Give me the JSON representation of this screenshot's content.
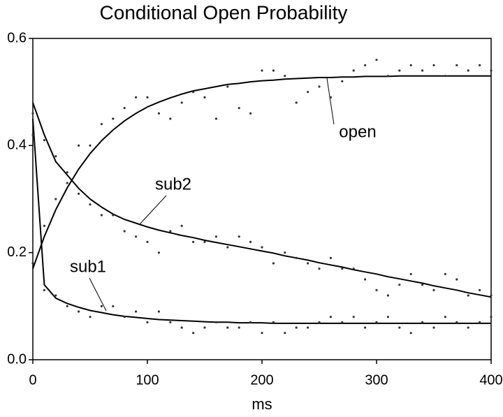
{
  "chart_data": {
    "type": "scatter",
    "title": "Conditional Open Probability",
    "x_label": "ms",
    "x": [
      0,
      10,
      20,
      30,
      40,
      50,
      60,
      70,
      80,
      90,
      100,
      110,
      120,
      130,
      140,
      150,
      160,
      170,
      180,
      190,
      200,
      210,
      220,
      230,
      240,
      250,
      260,
      270,
      280,
      290,
      300,
      310,
      320,
      330,
      340,
      350,
      360,
      370,
      380,
      390,
      400
    ],
    "series": [
      {
        "name": "open",
        "color": "#333333",
        "values": [
          0.18,
          0.25,
          0.3,
          0.35,
          0.4,
          0.4,
          0.44,
          0.45,
          0.47,
          0.49,
          0.49,
          0.46,
          0.45,
          0.48,
          0.5,
          0.49,
          0.45,
          0.51,
          0.47,
          0.46,
          0.54,
          0.54,
          0.53,
          0.48,
          0.5,
          0.51,
          0.49,
          0.52,
          0.54,
          0.55,
          0.56,
          0.53,
          0.54,
          0.55,
          0.54,
          0.55,
          0.53,
          0.55,
          0.54,
          0.55,
          0.54
        ],
        "fit": [
          0.17,
          0.23,
          0.28,
          0.321,
          0.356,
          0.385,
          0.409,
          0.429,
          0.446,
          0.46,
          0.472,
          0.481,
          0.489,
          0.496,
          0.502,
          0.506,
          0.51,
          0.514,
          0.516,
          0.519,
          0.521,
          0.522,
          0.524,
          0.525,
          0.526,
          0.527,
          0.527,
          0.528,
          0.528,
          0.529,
          0.529,
          0.529,
          0.53,
          0.53,
          0.53,
          0.53,
          0.53,
          0.53,
          0.53,
          0.53,
          0.53
        ]
      },
      {
        "name": "sub2",
        "color": "#333333",
        "values": [
          0.46,
          0.41,
          0.38,
          0.33,
          0.31,
          0.29,
          0.27,
          0.27,
          0.24,
          0.23,
          0.22,
          0.2,
          0.24,
          0.25,
          0.22,
          0.22,
          0.23,
          0.21,
          0.23,
          0.22,
          0.21,
          0.18,
          0.2,
          0.19,
          0.18,
          0.17,
          0.19,
          0.17,
          0.17,
          0.15,
          0.13,
          0.12,
          0.14,
          0.16,
          0.14,
          0.13,
          0.16,
          0.15,
          0.12,
          0.13,
          0.12
        ],
        "fit": [
          0.48,
          0.42,
          0.37,
          0.345,
          0.32,
          0.3,
          0.285,
          0.272,
          0.262,
          0.255,
          0.248,
          0.242,
          0.237,
          0.232,
          0.228,
          0.223,
          0.219,
          0.215,
          0.211,
          0.207,
          0.203,
          0.199,
          0.194,
          0.19,
          0.186,
          0.181,
          0.177,
          0.173,
          0.168,
          0.164,
          0.16,
          0.155,
          0.151,
          0.147,
          0.143,
          0.138,
          0.134,
          0.13,
          0.125,
          0.121,
          0.117
        ]
      },
      {
        "name": "sub1",
        "color": "#333333",
        "values": [
          0.42,
          0.13,
          0.12,
          0.1,
          0.09,
          0.08,
          0.1,
          0.1,
          0.08,
          0.09,
          0.07,
          0.09,
          0.07,
          0.06,
          0.05,
          0.06,
          0.07,
          0.06,
          0.06,
          0.07,
          0.05,
          0.07,
          0.05,
          0.06,
          0.06,
          0.07,
          0.08,
          0.07,
          0.08,
          0.06,
          0.07,
          0.08,
          0.06,
          0.05,
          0.07,
          0.06,
          0.08,
          0.07,
          0.06,
          0.07,
          0.08
        ],
        "fit": [
          0.45,
          0.14,
          0.115,
          0.105,
          0.098,
          0.092,
          0.088,
          0.084,
          0.081,
          0.079,
          0.077,
          0.075,
          0.074,
          0.073,
          0.072,
          0.071,
          0.07,
          0.07,
          0.069,
          0.069,
          0.069,
          0.068,
          0.068,
          0.068,
          0.068,
          0.068,
          0.068,
          0.068,
          0.068,
          0.068,
          0.068,
          0.068,
          0.068,
          0.068,
          0.068,
          0.068,
          0.068,
          0.068,
          0.068,
          0.068,
          0.068
        ]
      }
    ],
    "xlim": [
      0,
      400
    ],
    "xticks": [
      0,
      100,
      200,
      300,
      400
    ],
    "ylim": [
      0,
      0.6
    ],
    "yticks": [
      {
        "value": 0,
        "label": "0.0"
      },
      0.2,
      0.4,
      0.6
    ]
  }
}
